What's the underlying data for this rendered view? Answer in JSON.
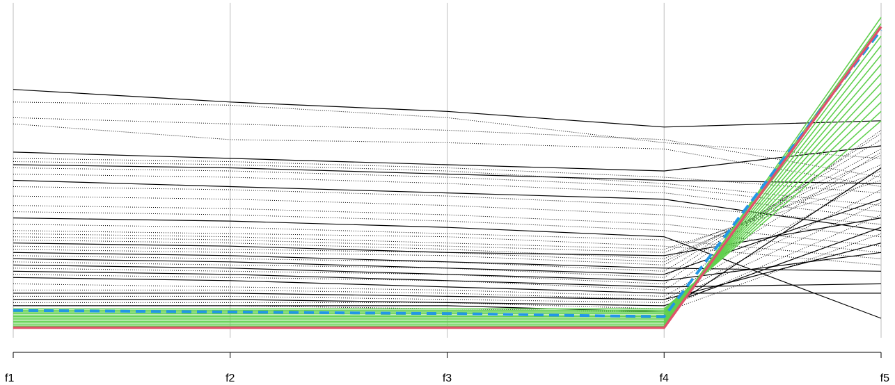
{
  "chart_data": {
    "type": "line",
    "subtype": "parallel-coordinates",
    "axes": [
      "f1",
      "f2",
      "f3",
      "f4",
      "f5"
    ],
    "ylim": [
      0,
      1
    ],
    "grid": true,
    "legend": "none",
    "colors": {
      "grid": "#bebebe",
      "solid": "#000000",
      "dotted": "#000000",
      "green": "#61d04f",
      "red": "#df536b",
      "blue": "#2297e6"
    },
    "series": [
      {
        "style": "red",
        "values": [
          0.01,
          0.01,
          0.01,
          0.01,
          0.97
        ]
      },
      {
        "style": "blue-dashed",
        "values": [
          0.065,
          0.06,
          0.055,
          0.045,
          0.96
        ]
      },
      {
        "style": "green",
        "values": [
          0.015,
          0.015,
          0.015,
          0.015,
          1.0
        ]
      },
      {
        "style": "green",
        "values": [
          0.02,
          0.02,
          0.02,
          0.02,
          0.98
        ]
      },
      {
        "style": "green",
        "values": [
          0.025,
          0.025,
          0.025,
          0.025,
          0.94
        ]
      },
      {
        "style": "green",
        "values": [
          0.03,
          0.03,
          0.03,
          0.03,
          0.91
        ]
      },
      {
        "style": "green",
        "values": [
          0.035,
          0.035,
          0.035,
          0.035,
          0.88
        ]
      },
      {
        "style": "green",
        "values": [
          0.04,
          0.04,
          0.04,
          0.04,
          0.85
        ]
      },
      {
        "style": "green",
        "values": [
          0.045,
          0.045,
          0.045,
          0.045,
          0.82
        ]
      },
      {
        "style": "green",
        "values": [
          0.05,
          0.05,
          0.05,
          0.05,
          0.79
        ]
      },
      {
        "style": "green",
        "values": [
          0.055,
          0.055,
          0.055,
          0.055,
          0.76
        ]
      },
      {
        "style": "green",
        "values": [
          0.06,
          0.06,
          0.06,
          0.06,
          0.73
        ]
      },
      {
        "style": "green",
        "values": [
          0.065,
          0.065,
          0.065,
          0.065,
          0.7
        ]
      },
      {
        "style": "green",
        "values": [
          0.07,
          0.07,
          0.07,
          0.07,
          0.67
        ]
      },
      {
        "style": "solid",
        "values": [
          0.77,
          0.73,
          0.7,
          0.65,
          0.67
        ]
      },
      {
        "style": "solid",
        "values": [
          0.57,
          0.55,
          0.53,
          0.51,
          0.59
        ]
      },
      {
        "style": "solid",
        "values": [
          0.53,
          0.52,
          0.5,
          0.48,
          0.47
        ]
      },
      {
        "style": "solid",
        "values": [
          0.48,
          0.46,
          0.44,
          0.42,
          0.32
        ]
      },
      {
        "style": "solid",
        "values": [
          0.36,
          0.35,
          0.33,
          0.3,
          0.04
        ]
      },
      {
        "style": "solid",
        "values": [
          0.28,
          0.27,
          0.25,
          0.24,
          0.36
        ]
      },
      {
        "style": "solid",
        "values": [
          0.25,
          0.24,
          0.22,
          0.2,
          0.19
        ]
      },
      {
        "style": "solid",
        "values": [
          0.23,
          0.22,
          0.2,
          0.18,
          0.42
        ]
      },
      {
        "style": "solid",
        "values": [
          0.21,
          0.2,
          0.18,
          0.16,
          0.25
        ]
      },
      {
        "style": "solid",
        "values": [
          0.19,
          0.18,
          0.16,
          0.14,
          0.15
        ]
      },
      {
        "style": "solid",
        "values": [
          0.17,
          0.16,
          0.14,
          0.12,
          0.12
        ]
      },
      {
        "style": "solid",
        "values": [
          0.12,
          0.12,
          0.11,
          0.1,
          0.28
        ]
      },
      {
        "style": "solid",
        "values": [
          0.1,
          0.1,
          0.09,
          0.08,
          0.33
        ]
      },
      {
        "style": "solid",
        "values": [
          0.08,
          0.08,
          0.08,
          0.06,
          0.52
        ]
      },
      {
        "style": "dotted",
        "values": [
          0.73,
          0.72,
          0.68,
          0.6,
          0.55
        ]
      },
      {
        "style": "dotted",
        "values": [
          0.68,
          0.66,
          0.64,
          0.61,
          0.49
        ]
      },
      {
        "style": "dotted",
        "values": [
          0.66,
          0.61,
          0.6,
          0.58,
          0.46
        ]
      },
      {
        "style": "dotted",
        "values": [
          0.55,
          0.54,
          0.52,
          0.49,
          0.44
        ]
      },
      {
        "style": "dotted",
        "values": [
          0.54,
          0.53,
          0.51,
          0.47,
          0.4
        ]
      },
      {
        "style": "dotted",
        "values": [
          0.52,
          0.51,
          0.49,
          0.46,
          0.38
        ]
      },
      {
        "style": "dotted",
        "values": [
          0.5,
          0.49,
          0.47,
          0.44,
          0.36
        ]
      },
      {
        "style": "dotted",
        "values": [
          0.46,
          0.45,
          0.43,
          0.4,
          0.34
        ]
      },
      {
        "style": "dotted",
        "values": [
          0.43,
          0.42,
          0.4,
          0.37,
          0.3
        ]
      },
      {
        "style": "dotted",
        "values": [
          0.4,
          0.39,
          0.37,
          0.34,
          0.27
        ]
      },
      {
        "style": "dotted",
        "values": [
          0.38,
          0.37,
          0.35,
          0.32,
          0.25
        ]
      },
      {
        "style": "dotted",
        "values": [
          0.34,
          0.33,
          0.31,
          0.29,
          0.23
        ]
      },
      {
        "style": "dotted",
        "values": [
          0.32,
          0.31,
          0.3,
          0.27,
          0.21
        ]
      },
      {
        "style": "dotted",
        "values": [
          0.31,
          0.3,
          0.28,
          0.26,
          0.48
        ]
      },
      {
        "style": "dotted",
        "values": [
          0.3,
          0.29,
          0.27,
          0.25,
          0.51
        ]
      },
      {
        "style": "dotted",
        "values": [
          0.29,
          0.28,
          0.26,
          0.23,
          0.53
        ]
      },
      {
        "style": "dotted",
        "values": [
          0.27,
          0.26,
          0.25,
          0.22,
          0.56
        ]
      },
      {
        "style": "dotted",
        "values": [
          0.26,
          0.25,
          0.24,
          0.21,
          0.58
        ]
      },
      {
        "style": "dotted",
        "values": [
          0.24,
          0.23,
          0.22,
          0.19,
          0.61
        ]
      },
      {
        "style": "dotted",
        "values": [
          0.22,
          0.21,
          0.2,
          0.17,
          0.63
        ]
      },
      {
        "style": "dotted",
        "values": [
          0.2,
          0.19,
          0.18,
          0.15,
          0.64
        ]
      },
      {
        "style": "dotted",
        "values": [
          0.18,
          0.17,
          0.16,
          0.13,
          0.57
        ]
      },
      {
        "style": "dotted",
        "values": [
          0.15,
          0.14,
          0.13,
          0.11,
          0.5
        ]
      },
      {
        "style": "dotted",
        "values": [
          0.13,
          0.13,
          0.12,
          0.1,
          0.45
        ]
      },
      {
        "style": "dotted",
        "values": [
          0.11,
          0.11,
          0.1,
          0.09,
          0.41
        ]
      },
      {
        "style": "dotted",
        "values": [
          0.09,
          0.09,
          0.09,
          0.07,
          0.37
        ]
      },
      {
        "style": "dotted",
        "values": [
          0.08,
          0.08,
          0.07,
          0.06,
          0.31
        ]
      }
    ]
  }
}
